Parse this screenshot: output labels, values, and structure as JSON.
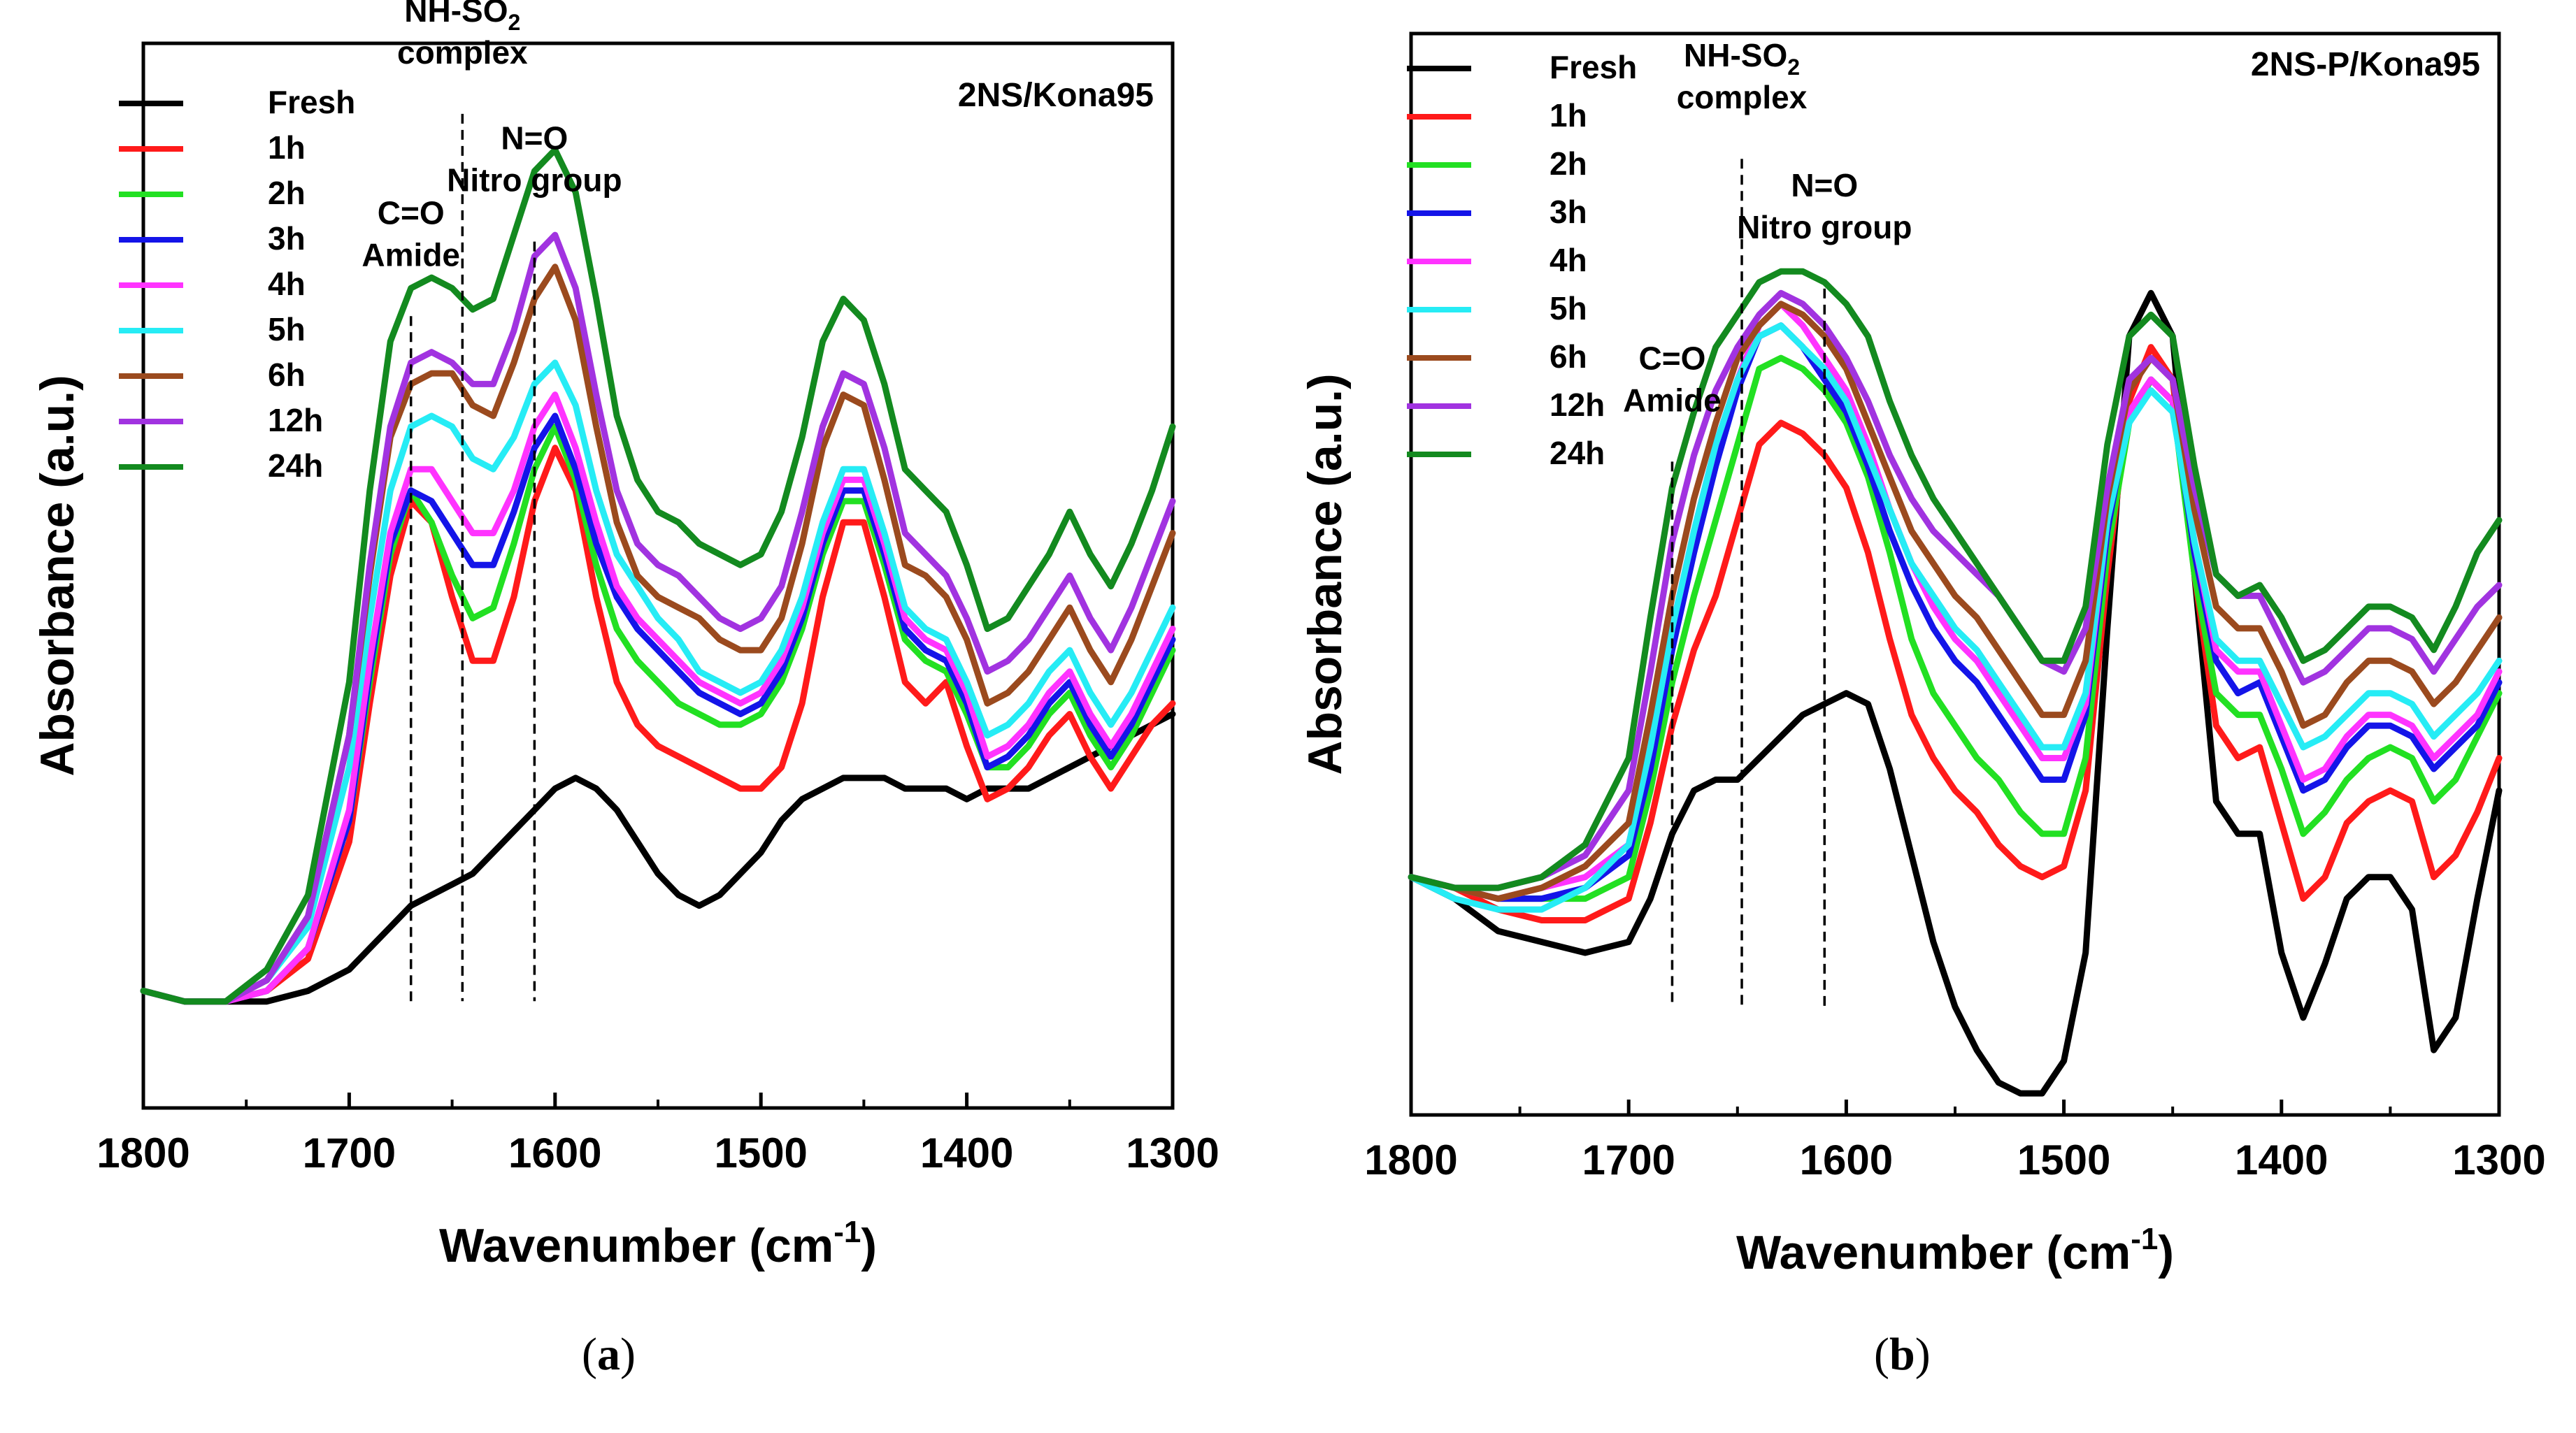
{
  "series_names": [
    "Fresh",
    "1h",
    "2h",
    "3h",
    "4h",
    "5h",
    "6h",
    "12h",
    "24h"
  ],
  "series_colors": [
    "#000000",
    "#ff1a1a",
    "#22e022",
    "#1414e8",
    "#ff33ff",
    "#26ecf5",
    "#9b4a1e",
    "#a133e0",
    "#138a1f"
  ],
  "x_tick_labels": [
    "1800",
    "1700",
    "1600",
    "1500",
    "1400",
    "1300"
  ],
  "chart_data": [
    {
      "type": "line",
      "panel_label": "a",
      "title": "2NS/Kona95",
      "xlabel": "Wavenumber (cm",
      "xlabel_sup": "-1",
      "xlabel_end": ")",
      "ylabel": "Absorbance (a.u.)",
      "xlim": [
        1800,
        1300
      ],
      "ylim": [
        0,
        1
      ],
      "annotations": [
        {
          "lines": [
            "C=O",
            "Amide"
          ],
          "x": 1670,
          "label_y": 0.77
        },
        {
          "lines": [
            "NH-SO",
            "complex"
          ],
          "sub": "2",
          "x": 1645,
          "label_y": 0.96
        },
        {
          "lines": [
            "N=O",
            "Nitro group"
          ],
          "x": 1610,
          "label_y": 0.84
        }
      ],
      "x": [
        1800,
        1780,
        1760,
        1740,
        1720,
        1700,
        1690,
        1680,
        1670,
        1660,
        1650,
        1640,
        1630,
        1620,
        1610,
        1600,
        1590,
        1580,
        1570,
        1560,
        1550,
        1540,
        1530,
        1520,
        1510,
        1500,
        1490,
        1480,
        1470,
        1460,
        1450,
        1440,
        1430,
        1420,
        1410,
        1400,
        1390,
        1380,
        1370,
        1360,
        1350,
        1340,
        1330,
        1320,
        1310,
        1300
      ],
      "series": [
        {
          "name": "Fresh",
          "values": [
            0.11,
            0.1,
            0.1,
            0.1,
            0.11,
            0.13,
            0.15,
            0.17,
            0.19,
            0.2,
            0.21,
            0.22,
            0.24,
            0.26,
            0.28,
            0.3,
            0.31,
            0.3,
            0.28,
            0.25,
            0.22,
            0.2,
            0.19,
            0.2,
            0.22,
            0.24,
            0.27,
            0.29,
            0.3,
            0.31,
            0.31,
            0.31,
            0.3,
            0.3,
            0.3,
            0.29,
            0.3,
            0.3,
            0.3,
            0.31,
            0.32,
            0.33,
            0.34,
            0.35,
            0.36,
            0.37
          ]
        },
        {
          "name": "1h",
          "values": [
            0.11,
            0.1,
            0.1,
            0.11,
            0.14,
            0.25,
            0.38,
            0.5,
            0.57,
            0.55,
            0.48,
            0.42,
            0.42,
            0.48,
            0.57,
            0.62,
            0.58,
            0.48,
            0.4,
            0.36,
            0.34,
            0.33,
            0.32,
            0.31,
            0.3,
            0.3,
            0.32,
            0.38,
            0.48,
            0.55,
            0.55,
            0.48,
            0.4,
            0.38,
            0.4,
            0.34,
            0.29,
            0.3,
            0.32,
            0.35,
            0.37,
            0.33,
            0.3,
            0.33,
            0.36,
            0.38
          ]
        },
        {
          "name": "2h",
          "values": [
            0.11,
            0.1,
            0.1,
            0.11,
            0.15,
            0.27,
            0.4,
            0.52,
            0.58,
            0.55,
            0.5,
            0.46,
            0.47,
            0.53,
            0.6,
            0.64,
            0.59,
            0.51,
            0.45,
            0.42,
            0.4,
            0.38,
            0.37,
            0.36,
            0.36,
            0.37,
            0.4,
            0.45,
            0.52,
            0.57,
            0.57,
            0.51,
            0.44,
            0.42,
            0.41,
            0.37,
            0.32,
            0.32,
            0.34,
            0.37,
            0.39,
            0.35,
            0.32,
            0.35,
            0.39,
            0.43
          ]
        },
        {
          "name": "3h",
          "values": [
            0.11,
            0.1,
            0.1,
            0.11,
            0.15,
            0.27,
            0.41,
            0.53,
            0.58,
            0.57,
            0.54,
            0.51,
            0.51,
            0.56,
            0.62,
            0.65,
            0.6,
            0.53,
            0.48,
            0.45,
            0.43,
            0.41,
            0.39,
            0.38,
            0.37,
            0.38,
            0.41,
            0.46,
            0.53,
            0.58,
            0.58,
            0.52,
            0.45,
            0.43,
            0.42,
            0.38,
            0.32,
            0.33,
            0.35,
            0.38,
            0.4,
            0.36,
            0.33,
            0.36,
            0.4,
            0.44
          ]
        },
        {
          "name": "4h",
          "values": [
            0.11,
            0.1,
            0.1,
            0.11,
            0.15,
            0.28,
            0.42,
            0.54,
            0.6,
            0.6,
            0.57,
            0.54,
            0.54,
            0.58,
            0.64,
            0.67,
            0.62,
            0.55,
            0.49,
            0.46,
            0.44,
            0.42,
            0.4,
            0.39,
            0.38,
            0.39,
            0.42,
            0.47,
            0.54,
            0.59,
            0.59,
            0.53,
            0.46,
            0.44,
            0.43,
            0.39,
            0.33,
            0.34,
            0.36,
            0.39,
            0.41,
            0.37,
            0.34,
            0.37,
            0.41,
            0.45
          ]
        },
        {
          "name": "5h",
          "values": [
            0.11,
            0.1,
            0.1,
            0.12,
            0.17,
            0.32,
            0.46,
            0.58,
            0.64,
            0.65,
            0.64,
            0.61,
            0.6,
            0.63,
            0.68,
            0.7,
            0.66,
            0.58,
            0.52,
            0.49,
            0.46,
            0.44,
            0.41,
            0.4,
            0.39,
            0.4,
            0.43,
            0.48,
            0.55,
            0.6,
            0.6,
            0.54,
            0.47,
            0.45,
            0.44,
            0.4,
            0.35,
            0.36,
            0.38,
            0.41,
            0.43,
            0.39,
            0.36,
            0.39,
            0.43,
            0.47
          ]
        },
        {
          "name": "6h",
          "values": [
            0.11,
            0.1,
            0.1,
            0.12,
            0.18,
            0.35,
            0.5,
            0.63,
            0.68,
            0.69,
            0.69,
            0.66,
            0.65,
            0.7,
            0.76,
            0.79,
            0.74,
            0.64,
            0.55,
            0.5,
            0.48,
            0.47,
            0.46,
            0.44,
            0.43,
            0.43,
            0.46,
            0.53,
            0.62,
            0.67,
            0.66,
            0.59,
            0.51,
            0.5,
            0.48,
            0.44,
            0.38,
            0.39,
            0.41,
            0.44,
            0.47,
            0.43,
            0.4,
            0.44,
            0.49,
            0.54
          ]
        },
        {
          "name": "12h",
          "values": [
            0.11,
            0.1,
            0.1,
            0.12,
            0.18,
            0.35,
            0.51,
            0.64,
            0.7,
            0.71,
            0.7,
            0.68,
            0.68,
            0.73,
            0.8,
            0.82,
            0.77,
            0.67,
            0.58,
            0.53,
            0.51,
            0.5,
            0.48,
            0.46,
            0.45,
            0.46,
            0.49,
            0.56,
            0.64,
            0.69,
            0.68,
            0.62,
            0.54,
            0.52,
            0.5,
            0.46,
            0.41,
            0.42,
            0.44,
            0.47,
            0.5,
            0.46,
            0.43,
            0.47,
            0.52,
            0.57
          ]
        },
        {
          "name": "24h",
          "values": [
            0.11,
            0.1,
            0.1,
            0.13,
            0.2,
            0.4,
            0.58,
            0.72,
            0.77,
            0.78,
            0.77,
            0.75,
            0.76,
            0.82,
            0.88,
            0.9,
            0.86,
            0.76,
            0.65,
            0.59,
            0.56,
            0.55,
            0.53,
            0.52,
            0.51,
            0.52,
            0.56,
            0.63,
            0.72,
            0.76,
            0.74,
            0.68,
            0.6,
            0.58,
            0.56,
            0.51,
            0.45,
            0.46,
            0.49,
            0.52,
            0.56,
            0.52,
            0.49,
            0.53,
            0.58,
            0.64
          ]
        }
      ]
    },
    {
      "type": "line",
      "panel_label": "b",
      "title": "2NS-P/Kona95",
      "xlabel": "Wavenumber (cm",
      "xlabel_sup": "-1",
      "xlabel_end": ")",
      "ylabel": "Absorbance (a.u.)",
      "xlim": [
        1800,
        1300
      ],
      "ylim": [
        0,
        1
      ],
      "annotations": [
        {
          "lines": [
            "C=O",
            "Amide"
          ],
          "x": 1680,
          "label_y": 0.63
        },
        {
          "lines": [
            "NH-SO",
            "complex"
          ],
          "sub": "2",
          "x": 1648,
          "label_y": 0.91
        },
        {
          "lines": [
            "N=O",
            "Nitro group"
          ],
          "x": 1610,
          "label_y": 0.79
        }
      ],
      "x": [
        1800,
        1780,
        1760,
        1740,
        1720,
        1700,
        1690,
        1680,
        1670,
        1660,
        1650,
        1640,
        1630,
        1620,
        1610,
        1600,
        1590,
        1580,
        1570,
        1560,
        1550,
        1540,
        1530,
        1520,
        1510,
        1500,
        1490,
        1480,
        1470,
        1460,
        1450,
        1440,
        1430,
        1420,
        1410,
        1400,
        1390,
        1380,
        1370,
        1360,
        1350,
        1340,
        1330,
        1320,
        1310,
        1300
      ],
      "series": [
        {
          "name": "Fresh",
          "values": [
            0.22,
            0.2,
            0.17,
            0.16,
            0.15,
            0.16,
            0.2,
            0.26,
            0.3,
            0.31,
            0.31,
            0.33,
            0.35,
            0.37,
            0.38,
            0.39,
            0.38,
            0.32,
            0.24,
            0.16,
            0.1,
            0.06,
            0.03,
            0.02,
            0.02,
            0.05,
            0.15,
            0.45,
            0.72,
            0.76,
            0.72,
            0.5,
            0.29,
            0.26,
            0.26,
            0.15,
            0.09,
            0.14,
            0.2,
            0.22,
            0.22,
            0.19,
            0.06,
            0.09,
            0.2,
            0.3
          ]
        },
        {
          "name": "1h",
          "values": [
            0.22,
            0.21,
            0.19,
            0.18,
            0.18,
            0.2,
            0.27,
            0.36,
            0.43,
            0.48,
            0.55,
            0.62,
            0.64,
            0.63,
            0.61,
            0.58,
            0.52,
            0.44,
            0.37,
            0.33,
            0.3,
            0.28,
            0.25,
            0.23,
            0.22,
            0.23,
            0.3,
            0.5,
            0.66,
            0.71,
            0.68,
            0.5,
            0.36,
            0.33,
            0.34,
            0.27,
            0.2,
            0.22,
            0.27,
            0.29,
            0.3,
            0.29,
            0.22,
            0.24,
            0.28,
            0.33
          ]
        },
        {
          "name": "2h",
          "values": [
            0.22,
            0.21,
            0.2,
            0.2,
            0.2,
            0.22,
            0.3,
            0.4,
            0.48,
            0.55,
            0.62,
            0.69,
            0.7,
            0.69,
            0.67,
            0.64,
            0.59,
            0.52,
            0.44,
            0.39,
            0.36,
            0.33,
            0.31,
            0.28,
            0.26,
            0.26,
            0.33,
            0.52,
            0.64,
            0.68,
            0.66,
            0.5,
            0.39,
            0.37,
            0.37,
            0.32,
            0.26,
            0.28,
            0.31,
            0.33,
            0.34,
            0.33,
            0.29,
            0.31,
            0.35,
            0.39
          ]
        },
        {
          "name": "3h",
          "values": [
            0.22,
            0.21,
            0.2,
            0.2,
            0.21,
            0.24,
            0.32,
            0.43,
            0.52,
            0.6,
            0.67,
            0.72,
            0.73,
            0.71,
            0.68,
            0.65,
            0.6,
            0.54,
            0.49,
            0.45,
            0.42,
            0.4,
            0.37,
            0.34,
            0.31,
            0.31,
            0.37,
            0.54,
            0.65,
            0.68,
            0.66,
            0.52,
            0.42,
            0.39,
            0.4,
            0.35,
            0.3,
            0.31,
            0.34,
            0.36,
            0.36,
            0.35,
            0.32,
            0.34,
            0.36,
            0.4
          ]
        },
        {
          "name": "4h",
          "values": [
            0.22,
            0.21,
            0.2,
            0.21,
            0.22,
            0.25,
            0.34,
            0.45,
            0.54,
            0.62,
            0.68,
            0.73,
            0.75,
            0.73,
            0.7,
            0.67,
            0.62,
            0.56,
            0.51,
            0.47,
            0.44,
            0.42,
            0.39,
            0.36,
            0.33,
            0.33,
            0.38,
            0.55,
            0.65,
            0.68,
            0.66,
            0.53,
            0.43,
            0.41,
            0.41,
            0.36,
            0.31,
            0.32,
            0.35,
            0.37,
            0.37,
            0.36,
            0.33,
            0.35,
            0.37,
            0.41
          ]
        },
        {
          "name": "5h",
          "values": [
            0.22,
            0.2,
            0.19,
            0.19,
            0.21,
            0.25,
            0.34,
            0.45,
            0.54,
            0.62,
            0.68,
            0.72,
            0.73,
            0.71,
            0.69,
            0.66,
            0.61,
            0.56,
            0.51,
            0.48,
            0.45,
            0.43,
            0.4,
            0.37,
            0.34,
            0.34,
            0.39,
            0.55,
            0.64,
            0.67,
            0.65,
            0.53,
            0.44,
            0.42,
            0.42,
            0.38,
            0.34,
            0.35,
            0.37,
            0.39,
            0.39,
            0.38,
            0.35,
            0.37,
            0.39,
            0.42
          ]
        },
        {
          "name": "6h",
          "values": [
            0.22,
            0.21,
            0.2,
            0.21,
            0.23,
            0.27,
            0.37,
            0.48,
            0.57,
            0.64,
            0.7,
            0.73,
            0.75,
            0.74,
            0.72,
            0.69,
            0.64,
            0.59,
            0.54,
            0.51,
            0.48,
            0.46,
            0.43,
            0.4,
            0.37,
            0.37,
            0.42,
            0.57,
            0.67,
            0.7,
            0.68,
            0.56,
            0.47,
            0.45,
            0.45,
            0.41,
            0.36,
            0.37,
            0.4,
            0.42,
            0.42,
            0.41,
            0.38,
            0.4,
            0.43,
            0.46
          ]
        },
        {
          "name": "12h",
          "values": [
            0.22,
            0.21,
            0.21,
            0.22,
            0.24,
            0.3,
            0.41,
            0.53,
            0.61,
            0.67,
            0.71,
            0.74,
            0.76,
            0.75,
            0.73,
            0.7,
            0.66,
            0.61,
            0.57,
            0.54,
            0.52,
            0.5,
            0.48,
            0.45,
            0.42,
            0.41,
            0.45,
            0.58,
            0.68,
            0.7,
            0.68,
            0.58,
            0.5,
            0.48,
            0.48,
            0.44,
            0.4,
            0.41,
            0.43,
            0.45,
            0.45,
            0.44,
            0.41,
            0.44,
            0.47,
            0.49
          ]
        },
        {
          "name": "24h",
          "values": [
            0.22,
            0.21,
            0.21,
            0.22,
            0.25,
            0.33,
            0.46,
            0.58,
            0.65,
            0.71,
            0.74,
            0.77,
            0.78,
            0.78,
            0.77,
            0.75,
            0.72,
            0.66,
            0.61,
            0.57,
            0.54,
            0.51,
            0.48,
            0.45,
            0.42,
            0.42,
            0.47,
            0.62,
            0.72,
            0.74,
            0.72,
            0.6,
            0.5,
            0.48,
            0.49,
            0.46,
            0.42,
            0.43,
            0.45,
            0.47,
            0.47,
            0.46,
            0.43,
            0.47,
            0.52,
            0.55
          ]
        }
      ]
    }
  ]
}
